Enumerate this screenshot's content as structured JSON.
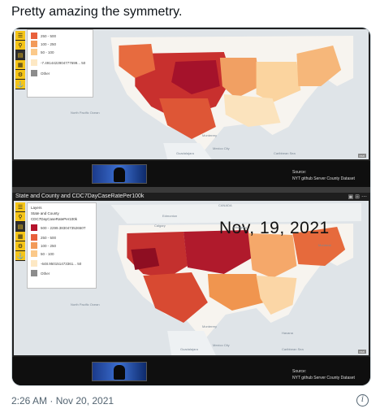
{
  "tweet": {
    "text": "Pretty amazing the symmetry.",
    "timestamp": "2:26 AM · Nov 20, 2021"
  },
  "top_panel": {
    "legend": [
      {
        "label": "250 - 500",
        "color": "#e8603c"
      },
      {
        "label": "100 - 250",
        "color": "#f29a59"
      },
      {
        "label": "50 - 100",
        "color": "#fbc98a"
      },
      {
        "label": "-7.4914422904777699... 50",
        "color": "#fde8c4"
      },
      {
        "label": "Other",
        "color": "#8c8c8c"
      }
    ],
    "map_labels": [
      "North Pacific Ocean",
      "Mexico City",
      "Guadalajara",
      "Monterrey",
      "Caribbean Sea"
    ],
    "source_lines": [
      "Source:",
      "NYT github Server County Dataset"
    ]
  },
  "bottom_panel": {
    "title": "State and County and CDC7DayCaseRatePer100k",
    "date_overlay": "Nov, 19, 2021",
    "legend_header": [
      "Layers",
      "State and County",
      "CDC7DayCaseRatePer100k"
    ],
    "legend": [
      {
        "label": "500 - 2299.383047352650T",
        "color": "#b5122b"
      },
      {
        "label": "250 - 500",
        "color": "#e8603c"
      },
      {
        "label": "100 - 250",
        "color": "#f29a59"
      },
      {
        "label": "50 - 100",
        "color": "#fbc98a"
      },
      {
        "label": "-648.950151473361... 50",
        "color": "#fde8c4"
      },
      {
        "label": "Other",
        "color": "#8c8c8c"
      }
    ],
    "map_labels": [
      "CANADA",
      "Edmonton",
      "Calgary",
      "Winnipeg",
      "Montreal",
      "North Pacific Ocean",
      "Mexico City",
      "Guadalajara",
      "Monterrey",
      "Havana",
      "Caribbean Sea"
    ],
    "source_lines": [
      "Source:",
      "NYT github Server County Dataset"
    ]
  },
  "icons": {
    "tools": [
      "list-icon",
      "search-icon",
      "layers-icon",
      "grid-icon",
      "gear-icon",
      "pin-icon"
    ],
    "info": "info-icon",
    "info_glyph": "i"
  },
  "colors": {
    "high": "#b5122b",
    "mid": "#e8603c",
    "low": "#fde8c4",
    "toolbar_accent": "#f5c518"
  }
}
